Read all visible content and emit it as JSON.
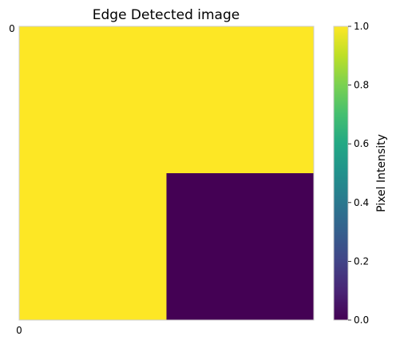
{
  "chart_data": {
    "type": "heatmap",
    "title": "Edge Detected image",
    "xlabel": "",
    "ylabel": "",
    "x_ticks": [
      "0"
    ],
    "y_ticks": [
      "0"
    ],
    "grid": [
      [
        1,
        1
      ],
      [
        1,
        0
      ]
    ],
    "colormap": "viridis",
    "colorbar": {
      "label": "Pixel Intensity",
      "ticks": [
        "0.0",
        "0.2",
        "0.4",
        "0.6",
        "0.8",
        "1.0"
      ],
      "range": [
        0,
        1
      ]
    }
  },
  "colors": {
    "high": "#fde725",
    "low": "#440154",
    "frame": "#cccccc"
  }
}
